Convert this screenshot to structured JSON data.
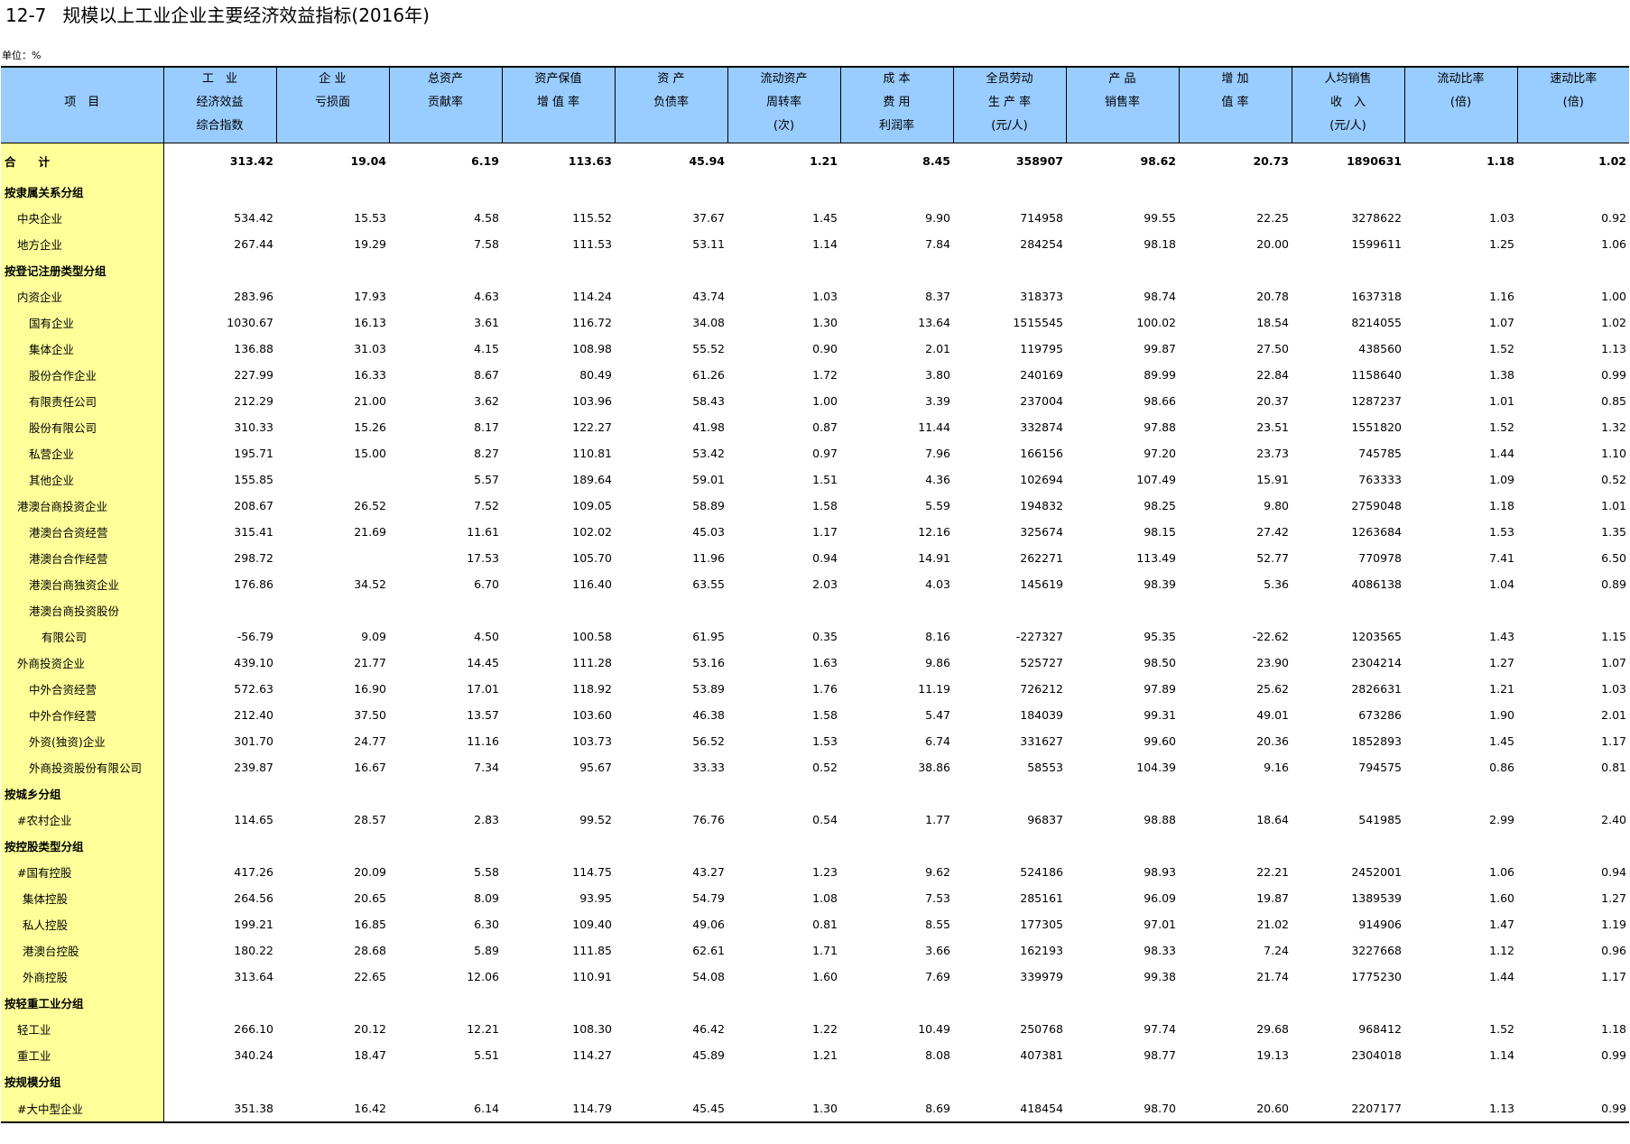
{
  "title": {
    "number": "12-7",
    "text": "规模以上工业企业主要经济效益指标(2016年)"
  },
  "unit_label": "单位：%",
  "colors": {
    "header_bg": "#99ccff",
    "name_col_bg": "#ffff99"
  },
  "columns": [
    {
      "lines": [
        "项　目"
      ]
    },
    {
      "lines": [
        "工　业",
        "经济效益",
        "综合指数"
      ]
    },
    {
      "lines": [
        "企 业",
        "亏损面",
        ""
      ]
    },
    {
      "lines": [
        "总资产",
        "贡献率",
        ""
      ]
    },
    {
      "lines": [
        "资产保值",
        "增 值 率",
        ""
      ]
    },
    {
      "lines": [
        "资 产",
        "负债率",
        ""
      ]
    },
    {
      "lines": [
        "流动资产",
        "周转率",
        "(次)"
      ]
    },
    {
      "lines": [
        "成 本",
        "费 用",
        "利润率"
      ]
    },
    {
      "lines": [
        "全员劳动",
        "生 产 率",
        "(元/人)"
      ]
    },
    {
      "lines": [
        "产 品",
        "销售率",
        ""
      ]
    },
    {
      "lines": [
        "增 加",
        "值 率",
        ""
      ]
    },
    {
      "lines": [
        "人均销售",
        "收　入",
        "(元/人)"
      ]
    },
    {
      "lines": [
        "流动比率",
        "(倍)",
        ""
      ]
    },
    {
      "lines": [
        "速动比率",
        "(倍)",
        ""
      ]
    }
  ],
  "rows": [
    {
      "type": "total",
      "indent": 0,
      "name": "合　　计",
      "values": [
        "313.42",
        "19.04",
        "6.19",
        "113.63",
        "45.94",
        "1.21",
        "8.45",
        "358907",
        "98.62",
        "20.73",
        "1890631",
        "1.18",
        "1.02"
      ]
    },
    {
      "type": "group",
      "indent": 0,
      "name": "按隶属关系分组",
      "values": [
        "",
        "",
        "",
        "",
        "",
        "",
        "",
        "",
        "",
        "",
        "",
        "",
        ""
      ]
    },
    {
      "type": "item",
      "indent": 1,
      "name": "中央企业",
      "values": [
        "534.42",
        "15.53",
        "4.58",
        "115.52",
        "37.67",
        "1.45",
        "9.90",
        "714958",
        "99.55",
        "22.25",
        "3278622",
        "1.03",
        "0.92"
      ]
    },
    {
      "type": "item",
      "indent": 1,
      "name": "地方企业",
      "values": [
        "267.44",
        "19.29",
        "7.58",
        "111.53",
        "53.11",
        "1.14",
        "7.84",
        "284254",
        "98.18",
        "20.00",
        "1599611",
        "1.25",
        "1.06"
      ]
    },
    {
      "type": "group",
      "indent": 0,
      "name": "按登记注册类型分组",
      "values": [
        "",
        "",
        "",
        "",
        "",
        "",
        "",
        "",
        "",
        "",
        "",
        "",
        ""
      ]
    },
    {
      "type": "item",
      "indent": 1,
      "name": "内资企业",
      "values": [
        "283.96",
        "17.93",
        "4.63",
        "114.24",
        "43.74",
        "1.03",
        "8.37",
        "318373",
        "98.74",
        "20.78",
        "1637318",
        "1.16",
        "1.00"
      ]
    },
    {
      "type": "item",
      "indent": 2,
      "name": "国有企业",
      "values": [
        "1030.67",
        "16.13",
        "3.61",
        "116.72",
        "34.08",
        "1.30",
        "13.64",
        "1515545",
        "100.02",
        "18.54",
        "8214055",
        "1.07",
        "1.02"
      ]
    },
    {
      "type": "item",
      "indent": 2,
      "name": "集体企业",
      "values": [
        "136.88",
        "31.03",
        "4.15",
        "108.98",
        "55.52",
        "0.90",
        "2.01",
        "119795",
        "99.87",
        "27.50",
        "438560",
        "1.52",
        "1.13"
      ]
    },
    {
      "type": "item",
      "indent": 2,
      "name": "股份合作企业",
      "values": [
        "227.99",
        "16.33",
        "8.67",
        "80.49",
        "61.26",
        "1.72",
        "3.80",
        "240169",
        "89.99",
        "22.84",
        "1158640",
        "1.38",
        "0.99"
      ]
    },
    {
      "type": "item",
      "indent": 2,
      "name": "有限责任公司",
      "values": [
        "212.29",
        "21.00",
        "3.62",
        "103.96",
        "58.43",
        "1.00",
        "3.39",
        "237004",
        "98.66",
        "20.37",
        "1287237",
        "1.01",
        "0.85"
      ]
    },
    {
      "type": "item",
      "indent": 2,
      "name": "股份有限公司",
      "values": [
        "310.33",
        "15.26",
        "8.17",
        "122.27",
        "41.98",
        "0.87",
        "11.44",
        "332874",
        "97.88",
        "23.51",
        "1551820",
        "1.52",
        "1.32"
      ]
    },
    {
      "type": "item",
      "indent": 2,
      "name": "私营企业",
      "values": [
        "195.71",
        "15.00",
        "8.27",
        "110.81",
        "53.42",
        "0.97",
        "7.96",
        "166156",
        "97.20",
        "23.73",
        "745785",
        "1.44",
        "1.10"
      ]
    },
    {
      "type": "item",
      "indent": 2,
      "name": "其他企业",
      "values": [
        "155.85",
        "",
        "5.57",
        "189.64",
        "59.01",
        "1.51",
        "4.36",
        "102694",
        "107.49",
        "15.91",
        "763333",
        "1.09",
        "0.52"
      ]
    },
    {
      "type": "item",
      "indent": 1,
      "name": "港澳台商投资企业",
      "values": [
        "208.67",
        "26.52",
        "7.52",
        "109.05",
        "58.89",
        "1.58",
        "5.59",
        "194832",
        "98.25",
        "9.80",
        "2759048",
        "1.18",
        "1.01"
      ]
    },
    {
      "type": "item",
      "indent": 2,
      "name": "港澳台合资经营",
      "values": [
        "315.41",
        "21.69",
        "11.61",
        "102.02",
        "45.03",
        "1.17",
        "12.16",
        "325674",
        "98.15",
        "27.42",
        "1263684",
        "1.53",
        "1.35"
      ]
    },
    {
      "type": "item",
      "indent": 2,
      "name": "港澳台合作经营",
      "values": [
        "298.72",
        "",
        "17.53",
        "105.70",
        "11.96",
        "0.94",
        "14.91",
        "262271",
        "113.49",
        "52.77",
        "770978",
        "7.41",
        "6.50"
      ]
    },
    {
      "type": "item",
      "indent": 2,
      "name": "港澳台商独资企业",
      "values": [
        "176.86",
        "34.52",
        "6.70",
        "116.40",
        "63.55",
        "2.03",
        "4.03",
        "145619",
        "98.39",
        "5.36",
        "4086138",
        "1.04",
        "0.89"
      ]
    },
    {
      "type": "item",
      "indent": 2,
      "name": "港澳台商投资股份",
      "values": [
        "",
        "",
        "",
        "",
        "",
        "",
        "",
        "",
        "",
        "",
        "",
        "",
        ""
      ]
    },
    {
      "type": "item",
      "indent": 3,
      "name": "有限公司",
      "values": [
        "-56.79",
        "9.09",
        "4.50",
        "100.58",
        "61.95",
        "0.35",
        "8.16",
        "-227327",
        "95.35",
        "-22.62",
        "1203565",
        "1.43",
        "1.15"
      ]
    },
    {
      "type": "item",
      "indent": 1,
      "name": "外商投资企业",
      "values": [
        "439.10",
        "21.77",
        "14.45",
        "111.28",
        "53.16",
        "1.63",
        "9.86",
        "525727",
        "98.50",
        "23.90",
        "2304214",
        "1.27",
        "1.07"
      ]
    },
    {
      "type": "item",
      "indent": 2,
      "name": "中外合资经营",
      "values": [
        "572.63",
        "16.90",
        "17.01",
        "118.92",
        "53.89",
        "1.76",
        "11.19",
        "726212",
        "97.89",
        "25.62",
        "2826631",
        "1.21",
        "1.03"
      ]
    },
    {
      "type": "item",
      "indent": 2,
      "name": "中外合作经营",
      "values": [
        "212.40",
        "37.50",
        "13.57",
        "103.60",
        "46.38",
        "1.58",
        "5.47",
        "184039",
        "99.31",
        "49.01",
        "673286",
        "1.90",
        "2.01"
      ]
    },
    {
      "type": "item",
      "indent": 2,
      "name": "外资(独资)企业",
      "values": [
        "301.70",
        "24.77",
        "11.16",
        "103.73",
        "56.52",
        "1.53",
        "6.74",
        "331627",
        "99.60",
        "20.36",
        "1852893",
        "1.45",
        "1.17"
      ]
    },
    {
      "type": "item",
      "indent": 2,
      "name": "外商投资股份有限公司",
      "values": [
        "239.87",
        "16.67",
        "7.34",
        "95.67",
        "33.33",
        "0.52",
        "38.86",
        "58553",
        "104.39",
        "9.16",
        "794575",
        "0.86",
        "0.81"
      ]
    },
    {
      "type": "group",
      "indent": 0,
      "name": "按城乡分组",
      "values": [
        "",
        "",
        "",
        "",
        "",
        "",
        "",
        "",
        "",
        "",
        "",
        "",
        ""
      ]
    },
    {
      "type": "item",
      "indent": 1,
      "name": "#农村企业",
      "values": [
        "114.65",
        "28.57",
        "2.83",
        "99.52",
        "76.76",
        "0.54",
        "1.77",
        "96837",
        "98.88",
        "18.64",
        "541985",
        "2.99",
        "2.40"
      ]
    },
    {
      "type": "group",
      "indent": 0,
      "name": "按控股类型分组",
      "values": [
        "",
        "",
        "",
        "",
        "",
        "",
        "",
        "",
        "",
        "",
        "",
        "",
        ""
      ]
    },
    {
      "type": "item",
      "indent": 1,
      "name": "#国有控股",
      "values": [
        "417.26",
        "20.09",
        "5.58",
        "114.75",
        "43.27",
        "1.23",
        "9.62",
        "524186",
        "98.93",
        "22.21",
        "2452001",
        "1.06",
        "0.94"
      ]
    },
    {
      "type": "item",
      "indent": 4,
      "name": "集体控股",
      "values": [
        "264.56",
        "20.65",
        "8.09",
        "93.95",
        "54.79",
        "1.08",
        "7.53",
        "285161",
        "96.09",
        "19.87",
        "1389539",
        "1.60",
        "1.27"
      ]
    },
    {
      "type": "item",
      "indent": 4,
      "name": "私人控股",
      "values": [
        "199.21",
        "16.85",
        "6.30",
        "109.40",
        "49.06",
        "0.81",
        "8.55",
        "177305",
        "97.01",
        "21.02",
        "914906",
        "1.47",
        "1.19"
      ]
    },
    {
      "type": "item",
      "indent": 4,
      "name": "港澳台控股",
      "values": [
        "180.22",
        "28.68",
        "5.89",
        "111.85",
        "62.61",
        "1.71",
        "3.66",
        "162193",
        "98.33",
        "7.24",
        "3227668",
        "1.12",
        "0.96"
      ]
    },
    {
      "type": "item",
      "indent": 4,
      "name": "外商控股",
      "values": [
        "313.64",
        "22.65",
        "12.06",
        "110.91",
        "54.08",
        "1.60",
        "7.69",
        "339979",
        "99.38",
        "21.74",
        "1775230",
        "1.44",
        "1.17"
      ]
    },
    {
      "type": "group",
      "indent": 0,
      "name": "按轻重工业分组",
      "values": [
        "",
        "",
        "",
        "",
        "",
        "",
        "",
        "",
        "",
        "",
        "",
        "",
        ""
      ]
    },
    {
      "type": "item",
      "indent": 1,
      "name": "轻工业",
      "values": [
        "266.10",
        "20.12",
        "12.21",
        "108.30",
        "46.42",
        "1.22",
        "10.49",
        "250768",
        "97.74",
        "29.68",
        "968412",
        "1.52",
        "1.18"
      ]
    },
    {
      "type": "item",
      "indent": 1,
      "name": "重工业",
      "values": [
        "340.24",
        "18.47",
        "5.51",
        "114.27",
        "45.89",
        "1.21",
        "8.08",
        "407381",
        "98.77",
        "19.13",
        "2304018",
        "1.14",
        "0.99"
      ]
    },
    {
      "type": "group",
      "indent": 0,
      "name": "按规模分组",
      "values": [
        "",
        "",
        "",
        "",
        "",
        "",
        "",
        "",
        "",
        "",
        "",
        "",
        ""
      ]
    },
    {
      "type": "item",
      "indent": 1,
      "name": "#大中型企业",
      "values": [
        "351.38",
        "16.42",
        "6.14",
        "114.79",
        "45.45",
        "1.30",
        "8.69",
        "418454",
        "98.70",
        "20.60",
        "2207177",
        "1.13",
        "0.99"
      ]
    }
  ]
}
